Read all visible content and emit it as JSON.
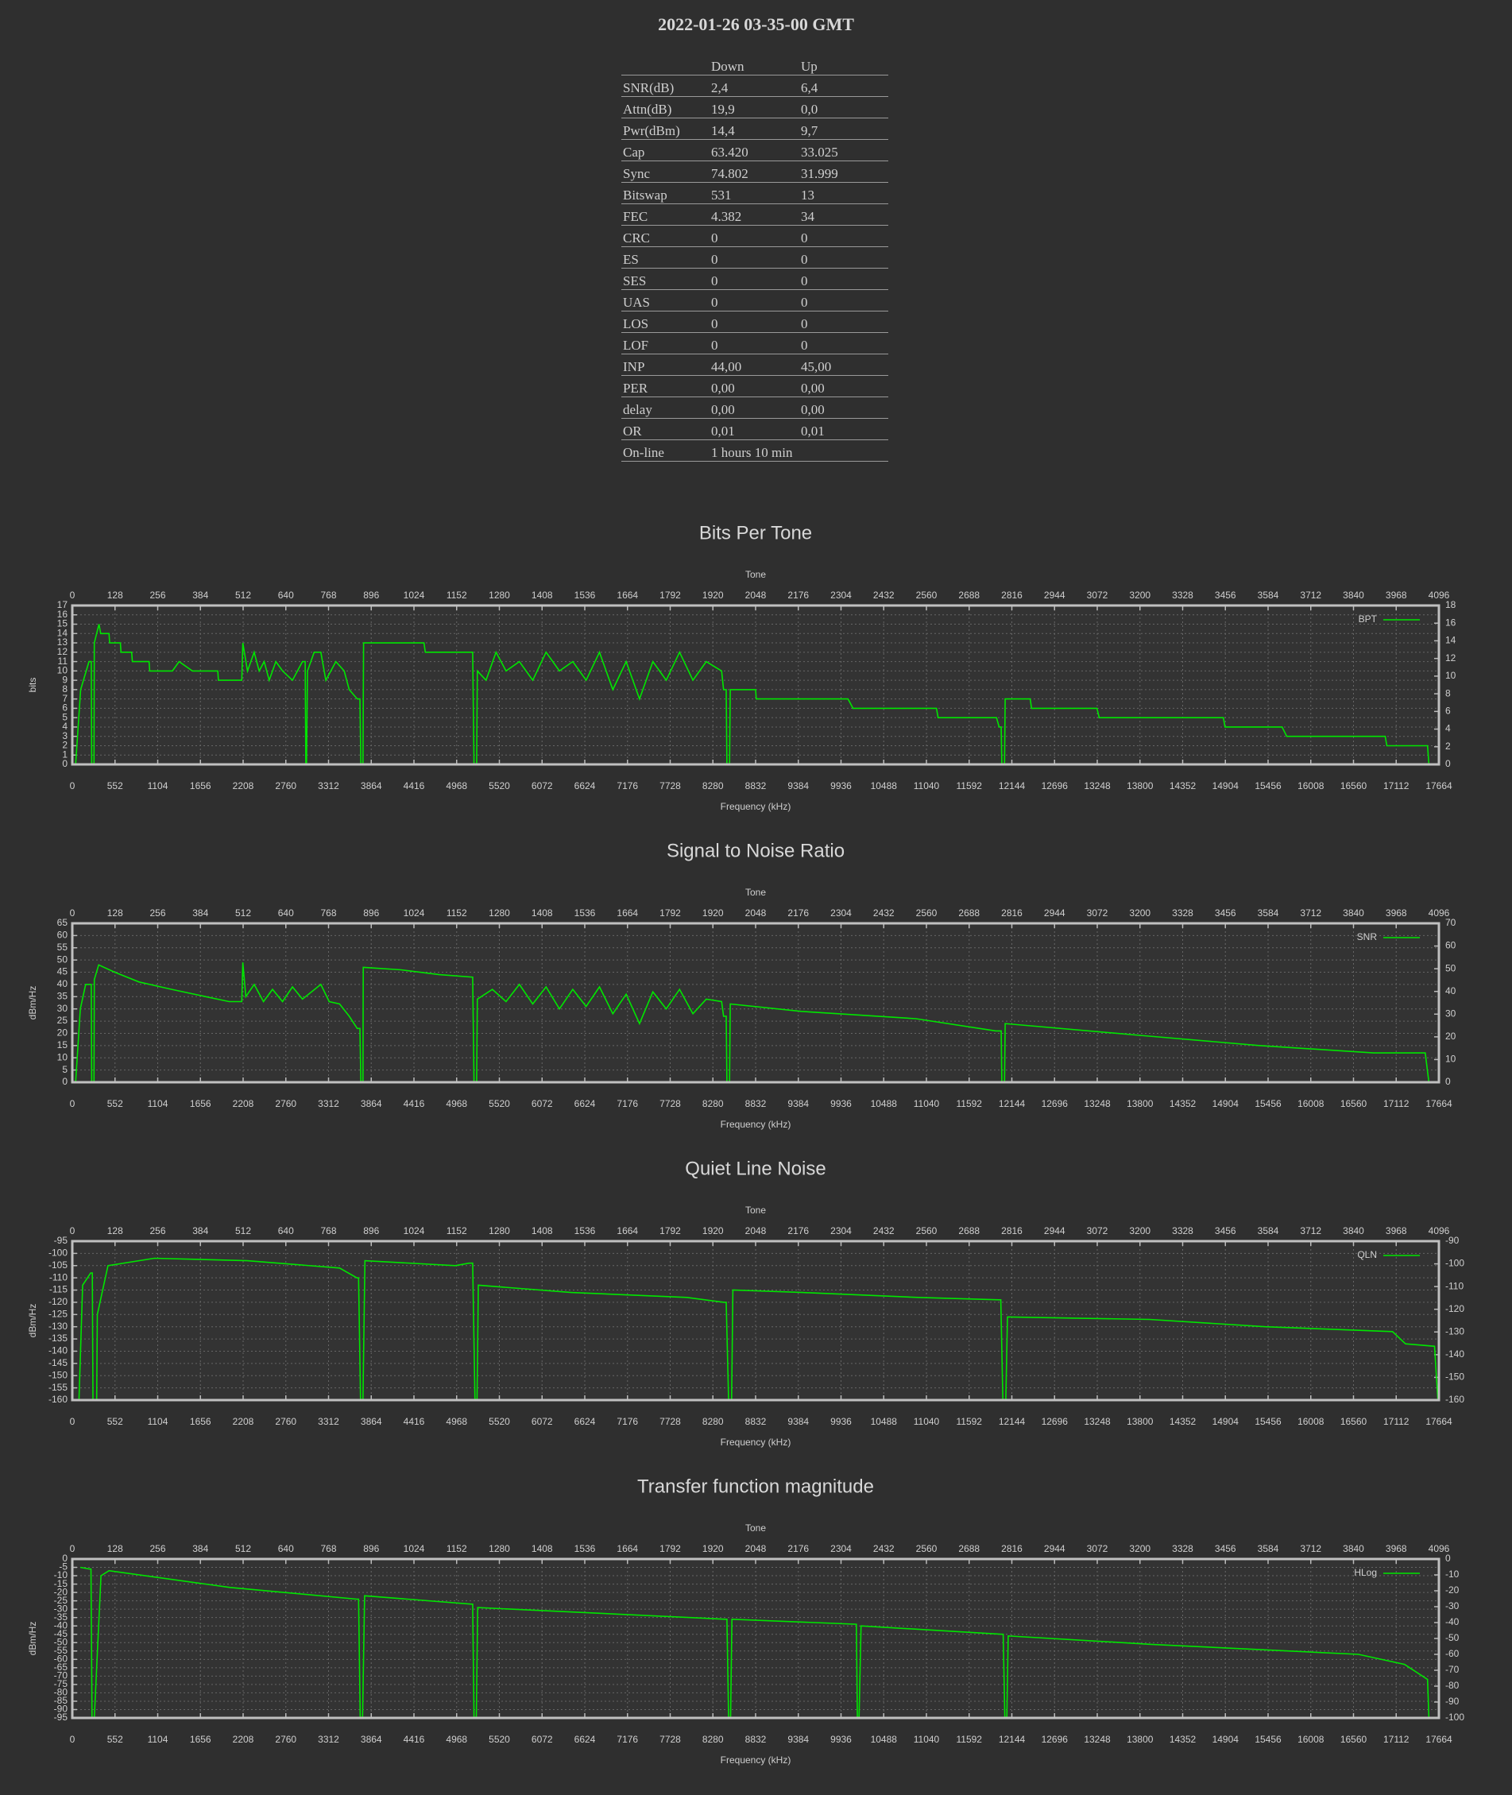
{
  "header": {
    "title": "2022-01-26 03-35-00 GMT"
  },
  "table": {
    "columns": [
      "Down",
      "Up"
    ],
    "rows": [
      [
        "SNR(dB)",
        "2,4",
        "6,4"
      ],
      [
        "Attn(dB)",
        "19,9",
        "0,0"
      ],
      [
        "Pwr(dBm)",
        "14,4",
        "9,7"
      ],
      [
        "Cap",
        "63.420",
        "33.025"
      ],
      [
        "Sync",
        "74.802",
        "31.999"
      ],
      [
        "Bitswap",
        "531",
        "13"
      ],
      [
        "FEC",
        "4.382",
        "34"
      ],
      [
        "CRC",
        "0",
        "0"
      ],
      [
        "ES",
        "0",
        "0"
      ],
      [
        "SES",
        "0",
        "0"
      ],
      [
        "UAS",
        "0",
        "0"
      ],
      [
        "LOS",
        "0",
        "0"
      ],
      [
        "LOF",
        "0",
        "0"
      ],
      [
        "INP",
        "44,00",
        "45,00"
      ],
      [
        "PER",
        "0,00",
        "0,00"
      ],
      [
        "delay",
        "0,00",
        "0,00"
      ],
      [
        "OR",
        "0,01",
        "0,01"
      ],
      [
        "On-line",
        "1 hours 10 min"
      ]
    ]
  },
  "chart_data": [
    {
      "type": "line",
      "title": "Bits Per Tone",
      "xlabel": "Tone",
      "x2label": "Frequency (kHz)",
      "ylabel": "bits",
      "grid": true,
      "legend": "upper right",
      "xlim": [
        0,
        4096
      ],
      "xticks": [
        0,
        128,
        256,
        384,
        512,
        640,
        768,
        896,
        1024,
        1152,
        1280,
        1408,
        1536,
        1664,
        1792,
        1920,
        2048,
        2176,
        2304,
        2432,
        2560,
        2688,
        2816,
        2944,
        3072,
        3200,
        3328,
        3456,
        3584,
        3712,
        3840,
        3968,
        4096
      ],
      "x2lim": [
        0,
        17664
      ],
      "x2ticks": [
        0,
        552,
        1104,
        1656,
        2208,
        2760,
        3312,
        3864,
        4416,
        4968,
        5520,
        6072,
        6624,
        7176,
        7728,
        8280,
        8832,
        9384,
        9936,
        10488,
        11040,
        11592,
        12144,
        12696,
        13248,
        13800,
        14352,
        14904,
        15456,
        16008,
        16560,
        17112,
        17664
      ],
      "ylim": [
        0,
        17
      ],
      "yticks": [
        0,
        1,
        2,
        3,
        4,
        5,
        6,
        7,
        8,
        9,
        10,
        11,
        12,
        13,
        14,
        15,
        16,
        17
      ],
      "y2lim": [
        0,
        18
      ],
      "y2ticks": [
        0,
        2,
        4,
        6,
        8,
        10,
        12,
        14,
        16,
        18
      ],
      "x": [
        10,
        25,
        50,
        57,
        58,
        65,
        66,
        80,
        85,
        110,
        112,
        144,
        146,
        178,
        180,
        230,
        232,
        300,
        320,
        360,
        436,
        438,
        470,
        508,
        511,
        525,
        545,
        560,
        575,
        590,
        610,
        630,
        660,
        690,
        698,
        700,
        702,
        705,
        725,
        745,
        760,
        790,
        815,
        830,
        854,
        862,
        865,
        871,
        873,
        1054,
        1058,
        1200,
        1204,
        1212,
        1214,
        1240,
        1270,
        1300,
        1340,
        1380,
        1420,
        1460,
        1500,
        1540,
        1580,
        1620,
        1660,
        1700,
        1740,
        1780,
        1820,
        1860,
        1900,
        1946,
        1952,
        1960,
        1962,
        1970,
        1972,
        2048,
        2050,
        2325,
        2340,
        2590,
        2595,
        2770,
        2778,
        2784,
        2786,
        2794,
        2796,
        2871,
        2875,
        3071,
        3078,
        3450,
        3455,
        3626,
        3640,
        3935,
        3940,
        4062,
        4066
      ],
      "series": [
        {
          "name": "BPT",
          "color": "#00e600",
          "values": [
            0,
            8,
            11,
            11,
            0,
            0,
            13,
            15,
            14,
            14,
            13,
            13,
            12,
            12,
            11,
            11,
            10,
            10,
            11,
            10,
            10,
            9,
            9,
            9,
            13,
            10,
            12,
            10,
            11,
            9,
            11,
            10,
            9,
            11,
            11,
            0,
            0,
            10,
            12,
            12,
            9,
            11,
            10,
            8,
            7,
            7,
            0,
            0,
            13,
            13,
            12,
            12,
            0,
            0,
            10,
            9,
            12,
            10,
            11,
            9,
            12,
            10,
            11,
            9,
            12,
            8,
            11,
            7,
            11,
            9,
            12,
            9,
            11,
            10,
            8,
            8,
            0,
            0,
            8,
            8,
            7,
            7,
            6,
            6,
            5,
            5,
            4,
            4,
            0,
            0,
            7,
            7,
            6,
            6,
            5,
            5,
            4,
            4,
            3,
            3,
            2,
            2,
            0
          ]
        }
      ]
    },
    {
      "type": "line",
      "title": "Signal to Noise Ratio",
      "xlabel": "Tone",
      "x2label": "Frequency (kHz)",
      "ylabel": "dBm/Hz",
      "grid": true,
      "legend": "upper right",
      "xlim": [
        0,
        4096
      ],
      "xticks": [
        0,
        128,
        256,
        384,
        512,
        640,
        768,
        896,
        1024,
        1152,
        1280,
        1408,
        1536,
        1664,
        1792,
        1920,
        2048,
        2176,
        2304,
        2432,
        2560,
        2688,
        2816,
        2944,
        3072,
        3200,
        3328,
        3456,
        3584,
        3712,
        3840,
        3968,
        4096
      ],
      "x2lim": [
        0,
        17664
      ],
      "x2ticks": [
        0,
        552,
        1104,
        1656,
        2208,
        2760,
        3312,
        3864,
        4416,
        4968,
        5520,
        6072,
        6624,
        7176,
        7728,
        8280,
        8832,
        9384,
        9936,
        10488,
        11040,
        11592,
        12144,
        12696,
        13248,
        13800,
        14352,
        14904,
        15456,
        16008,
        16560,
        17112,
        17664
      ],
      "ylim": [
        0,
        65
      ],
      "yticks": [
        0,
        5,
        10,
        15,
        20,
        25,
        30,
        35,
        40,
        45,
        50,
        55,
        60,
        65
      ],
      "y2lim": [
        0,
        70
      ],
      "y2ticks": [
        0,
        10,
        20,
        30,
        40,
        50,
        60,
        70
      ],
      "x": [
        10,
        24,
        40,
        57,
        58,
        65,
        66,
        79,
        127,
        200,
        298,
        400,
        470,
        508,
        511,
        520,
        545,
        573,
        600,
        630,
        660,
        690,
        745,
        770,
        801,
        830,
        854,
        862,
        865,
        871,
        872,
        985,
        1100,
        1200,
        1204,
        1212,
        1214,
        1259,
        1300,
        1340,
        1380,
        1420,
        1460,
        1500,
        1540,
        1580,
        1620,
        1660,
        1700,
        1740,
        1780,
        1820,
        1860,
        1900,
        1946,
        1952,
        1960,
        1962,
        1970,
        1972,
        2185,
        2528,
        2768,
        2784,
        2786,
        2794,
        2796,
        3214,
        3557,
        3900,
        4055,
        4066
      ],
      "series": [
        {
          "name": "SNR",
          "color": "#00e600",
          "values": [
            0,
            30,
            40,
            40,
            0,
            0,
            42,
            48,
            45,
            41,
            38,
            35,
            33,
            33,
            49,
            35,
            40,
            33,
            38,
            33,
            39,
            34,
            40,
            33,
            32,
            27,
            22,
            22,
            0,
            0,
            47,
            46,
            44,
            43,
            0,
            0,
            34,
            38,
            33,
            40,
            32,
            39,
            30,
            38,
            31,
            39,
            28,
            36,
            24,
            37,
            30,
            38,
            28,
            34,
            33,
            27,
            27,
            0,
            0,
            32,
            29,
            26,
            21,
            21,
            0,
            0,
            24,
            19,
            15,
            12,
            12,
            0
          ]
        }
      ]
    },
    {
      "type": "line",
      "title": "Quiet Line Noise",
      "xlabel": "Tone",
      "x2label": "Frequency (kHz)",
      "ylabel": "dBm/Hz",
      "grid": true,
      "legend": "upper right",
      "xlim": [
        0,
        4096
      ],
      "xticks": [
        0,
        128,
        256,
        384,
        512,
        640,
        768,
        896,
        1024,
        1152,
        1280,
        1408,
        1536,
        1664,
        1792,
        1920,
        2048,
        2176,
        2304,
        2432,
        2560,
        2688,
        2816,
        2944,
        3072,
        3200,
        3328,
        3456,
        3584,
        3712,
        3840,
        3968,
        4096
      ],
      "x2lim": [
        0,
        17664
      ],
      "x2ticks": [
        0,
        552,
        1104,
        1656,
        2208,
        2760,
        3312,
        3864,
        4416,
        4968,
        5520,
        6072,
        6624,
        7176,
        7728,
        8280,
        8832,
        9384,
        9936,
        10488,
        11040,
        11592,
        12144,
        12696,
        13248,
        13800,
        14352,
        14904,
        15456,
        16008,
        16560,
        17112,
        17664
      ],
      "ylim": [
        -160,
        -95
      ],
      "yticks": [
        -95,
        -100,
        -105,
        -110,
        -115,
        -120,
        -125,
        -130,
        -135,
        -140,
        -145,
        -150,
        -155,
        -160
      ],
      "y2lim": [
        -160,
        -90
      ],
      "y2ticks": [
        -90,
        -100,
        -110,
        -120,
        -130,
        -140,
        -150,
        -160
      ],
      "x": [
        20,
        31,
        55,
        60,
        62,
        73,
        75,
        107,
        246,
        524,
        801,
        853,
        858,
        864,
        871,
        877,
        1148,
        1189,
        1200,
        1207,
        1213,
        1217,
        1495,
        1842,
        1953,
        1960,
        1967,
        1976,
        1980,
        2189,
        2535,
        2778,
        2783,
        2789,
        2798,
        2803,
        3229,
        3576,
        3957,
        3996,
        4083,
        4093
      ],
      "series": [
        {
          "name": "QLN",
          "color": "#00e600",
          "values": [
            -160,
            -113,
            -108,
            -108,
            -160,
            -160,
            -125,
            -105,
            -102,
            -103,
            -106,
            -110,
            -110,
            -160,
            -160,
            -103,
            -105,
            -104,
            -104,
            -160,
            -160,
            -113,
            -116,
            -118,
            -120,
            -120,
            -160,
            -160,
            -115,
            -116,
            -118,
            -119,
            -119,
            -160,
            -160,
            -126,
            -127,
            -130,
            -132,
            -137,
            -138,
            -160
          ]
        }
      ]
    },
    {
      "type": "line",
      "title": "Transfer function magnitude",
      "xlabel": "Tone",
      "x2label": "Frequency (kHz)",
      "ylabel": "dBm/Hz",
      "grid": true,
      "legend": "upper right",
      "xlim": [
        0,
        4096
      ],
      "xticks": [
        0,
        128,
        256,
        384,
        512,
        640,
        768,
        896,
        1024,
        1152,
        1280,
        1408,
        1536,
        1664,
        1792,
        1920,
        2048,
        2176,
        2304,
        2432,
        2560,
        2688,
        2816,
        2944,
        3072,
        3200,
        3328,
        3456,
        3584,
        3712,
        3840,
        3968,
        4096
      ],
      "x2lim": [
        0,
        17664
      ],
      "x2ticks": [
        0,
        552,
        1104,
        1656,
        2208,
        2760,
        3312,
        3864,
        4416,
        4968,
        5520,
        6072,
        6624,
        7176,
        7728,
        8280,
        8832,
        9384,
        9936,
        10488,
        11040,
        11592,
        12144,
        12696,
        13248,
        13800,
        14352,
        14904,
        15456,
        16008,
        16560,
        17112,
        17664
      ],
      "ylim": [
        -95,
        0
      ],
      "yticks": [
        0,
        -5,
        -10,
        -15,
        -20,
        -25,
        -30,
        -35,
        -40,
        -45,
        -50,
        -55,
        -60,
        -65,
        -70,
        -75,
        -80,
        -85,
        -90,
        -95
      ],
      "y2lim": [
        -100,
        0
      ],
      "y2ticks": [
        0,
        -10,
        -20,
        -30,
        -40,
        -50,
        -60,
        -70,
        -80,
        -90,
        -100
      ],
      "x": [
        24,
        52,
        56,
        59,
        66,
        86,
        110,
        473,
        852,
        858,
        863,
        870,
        876,
        1197,
        1200,
        1204,
        1211,
        1215,
        1957,
        1962,
        1967,
        1973,
        1977,
        2350,
        2353,
        2358,
        2364,
        2785,
        2790,
        2795,
        2801,
        2805,
        3233,
        3855,
        3993,
        4062,
        4066
      ],
      "series": [
        {
          "name": "HLog",
          "color": "#00e600",
          "values": [
            -5,
            -6,
            -6,
            -95,
            -95,
            -10,
            -7,
            -17,
            -24,
            -24,
            -95,
            -95,
            -22,
            -27,
            -27,
            -95,
            -95,
            -29,
            -36,
            -36,
            -95,
            -95,
            -36,
            -39,
            -95,
            -95,
            -40,
            -45,
            -45,
            -95,
            -95,
            -46,
            -51,
            -57,
            -63,
            -72,
            -95
          ]
        }
      ]
    }
  ]
}
